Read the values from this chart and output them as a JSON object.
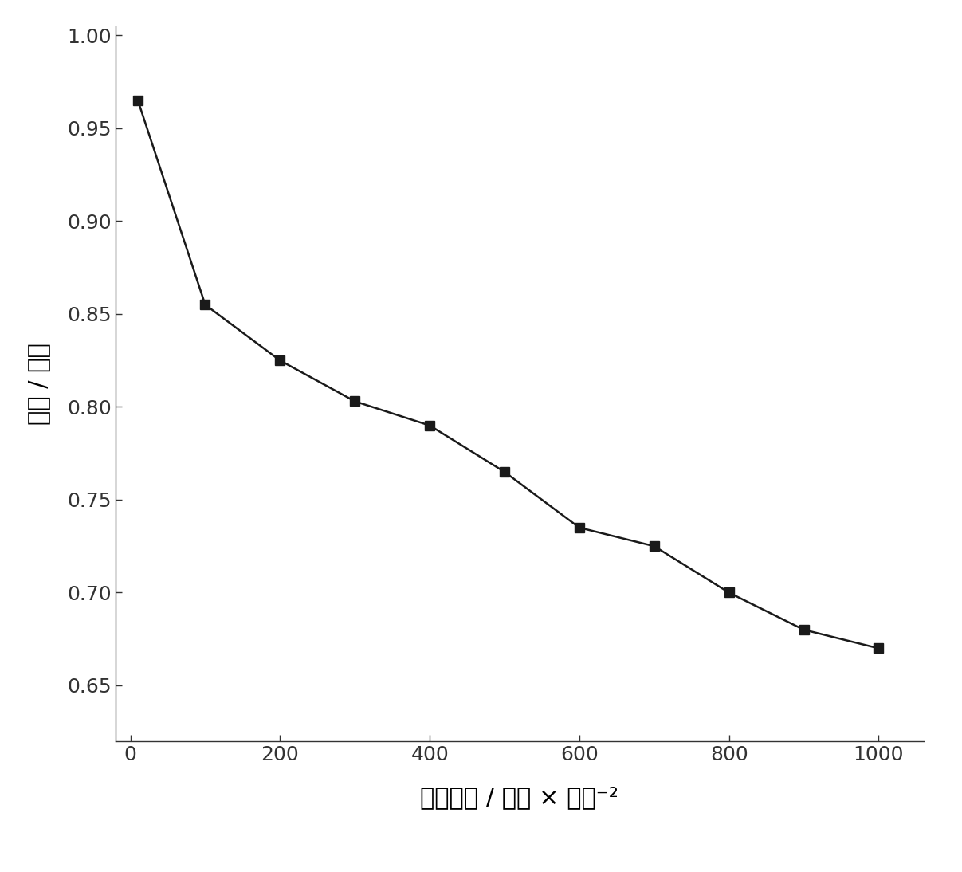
{
  "x": [
    10,
    100,
    200,
    300,
    400,
    500,
    600,
    700,
    800,
    900,
    1000
  ],
  "y": [
    0.965,
    0.855,
    0.825,
    0.803,
    0.79,
    0.765,
    0.735,
    0.725,
    0.7,
    0.68,
    0.67
  ],
  "xlabel": "电流密度 / 毫安 × 里米⁻²",
  "ylabel": "电压 / 伏特",
  "xlim": [
    -20,
    1060
  ],
  "ylim": [
    0.62,
    1.005
  ],
  "xticks": [
    0,
    200,
    400,
    600,
    800,
    1000
  ],
  "yticks": [
    0.65,
    0.7,
    0.75,
    0.8,
    0.85,
    0.9,
    0.95,
    1.0
  ],
  "line_color": "#1a1a1a",
  "marker": "s",
  "marker_size": 8,
  "line_width": 1.8,
  "background_color": "#ffffff",
  "plot_bg_color": "#ffffff",
  "label_fontsize": 22,
  "tick_fontsize": 18
}
